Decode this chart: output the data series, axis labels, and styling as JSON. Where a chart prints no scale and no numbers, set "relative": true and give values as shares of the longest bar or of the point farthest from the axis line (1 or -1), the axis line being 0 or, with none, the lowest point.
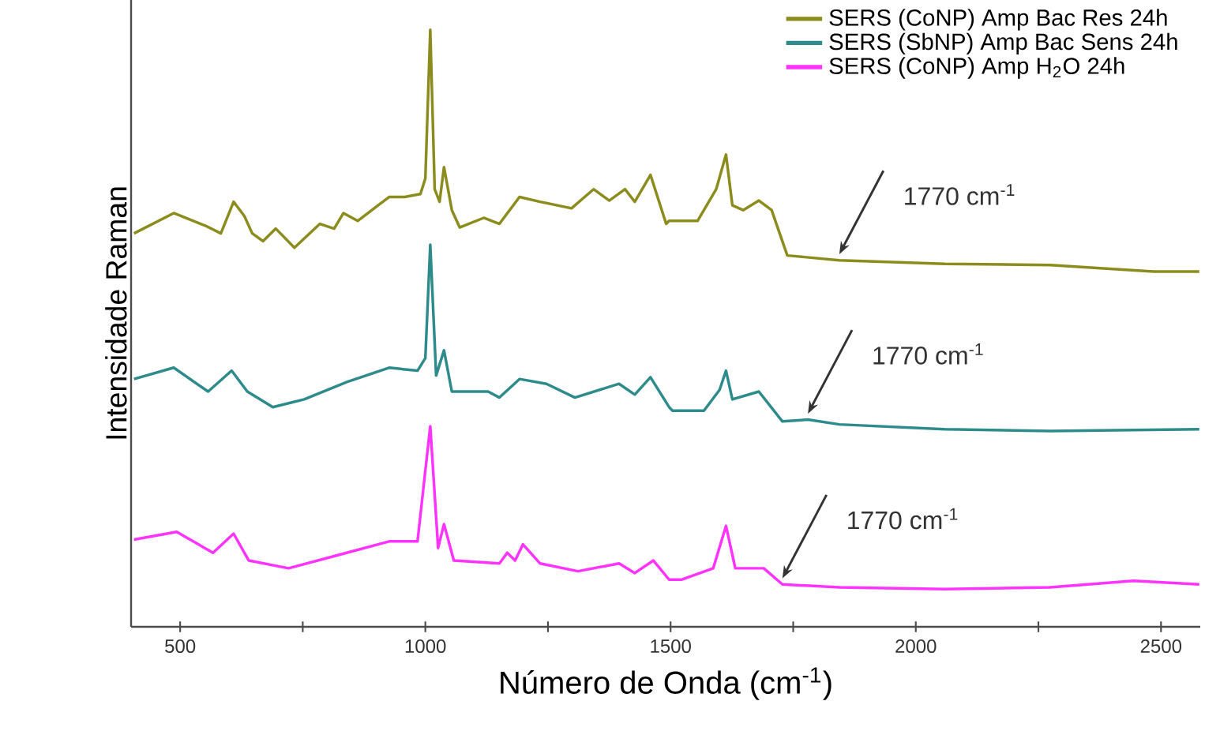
{
  "chart_data": {
    "type": "line",
    "relative": true,
    "xlabel": "Número de Onda (cm$^{-1}$)",
    "ylabel": "Intensidade Raman",
    "legend": "top right",
    "xlim": [
      400,
      2580
    ],
    "xticks": [
      500,
      {
        "value": 750,
        "label": null
      },
      1000,
      {
        "value": 1250,
        "label": null
      },
      1500,
      {
        "value": 1750,
        "label": null
      },
      2000,
      {
        "value": 2250,
        "label": null
      },
      2500
    ],
    "series": [
      {
        "name": "SERS (CoNP) Amp Bac Res 24h",
        "color": "#8c8c1e",
        "x": [
          406,
          487,
          551,
          583,
          609,
          631,
          647,
          669,
          695,
          733,
          785,
          814,
          833,
          862,
          926,
          958,
          990,
          1000,
          1010,
          1019,
          1029,
          1038,
          1054,
          1070,
          1119,
          1151,
          1192,
          1234,
          1298,
          1343,
          1375,
          1407,
          1427,
          1459,
          1491,
          1497,
          1555,
          1593,
          1613,
          1626,
          1648,
          1680,
          1706,
          1738,
          1844,
          2059,
          2274,
          2485,
          2578
        ],
        "values": [
          0.659,
          0.693,
          0.672,
          0.659,
          0.712,
          0.688,
          0.659,
          0.646,
          0.667,
          0.635,
          0.675,
          0.667,
          0.693,
          0.68,
          0.72,
          0.72,
          0.725,
          0.751,
          1.0,
          0.733,
          0.712,
          0.77,
          0.698,
          0.669,
          0.685,
          0.675,
          0.72,
          0.712,
          0.701,
          0.733,
          0.714,
          0.733,
          0.712,
          0.757,
          0.675,
          0.68,
          0.68,
          0.733,
          0.791,
          0.706,
          0.698,
          0.714,
          0.698,
          0.622,
          0.614,
          0.608,
          0.606,
          0.595,
          0.595
        ]
      },
      {
        "name": "SERS (SbNP) Amp Bac Sens 24h",
        "color": "#2e8b8b",
        "x": [
          406,
          487,
          557,
          605,
          637,
          689,
          753,
          840,
          926,
          984,
          1000,
          1010,
          1022,
          1038,
          1054,
          1128,
          1151,
          1192,
          1247,
          1305,
          1395,
          1427,
          1459,
          1497,
          1504,
          1568,
          1600,
          1613,
          1626,
          1680,
          1728,
          1780,
          1844,
          2059,
          2274,
          2578
        ],
        "values": [
          0.415,
          0.434,
          0.394,
          0.429,
          0.394,
          0.368,
          0.381,
          0.41,
          0.434,
          0.429,
          0.45,
          0.64,
          0.421,
          0.463,
          0.394,
          0.394,
          0.384,
          0.415,
          0.407,
          0.384,
          0.407,
          0.389,
          0.418,
          0.368,
          0.362,
          0.362,
          0.397,
          0.429,
          0.381,
          0.394,
          0.344,
          0.347,
          0.339,
          0.331,
          0.328,
          0.331
        ]
      },
      {
        "name": "SERS (CoNP) Amp H$_{2}$O 24h",
        "color": "#ff33ff",
        "x": [
          406,
          493,
          567,
          609,
          640,
          721,
          817,
          926,
          984,
          1010,
          1026,
          1038,
          1058,
          1151,
          1167,
          1183,
          1199,
          1234,
          1311,
          1395,
          1427,
          1465,
          1497,
          1523,
          1587,
          1613,
          1632,
          1690,
          1728,
          1844,
          2059,
          2274,
          2444,
          2578
        ],
        "values": [
          0.146,
          0.159,
          0.124,
          0.156,
          0.111,
          0.098,
          0.119,
          0.143,
          0.143,
          0.336,
          0.132,
          0.172,
          0.111,
          0.106,
          0.124,
          0.111,
          0.138,
          0.106,
          0.093,
          0.106,
          0.09,
          0.111,
          0.079,
          0.079,
          0.098,
          0.169,
          0.098,
          0.098,
          0.071,
          0.066,
          0.063,
          0.066,
          0.077,
          0.071
        ]
      }
    ],
    "annotations": [
      {
        "text": "1770 cm$^{-1}$",
        "x": 1844,
        "y": 0.614
      },
      {
        "text": "1770 cm$^{-1}$",
        "x": 1780,
        "y": 0.347
      },
      {
        "text": "1770 cm$^{-1}$",
        "x": 1728,
        "y": 0.071
      }
    ]
  }
}
